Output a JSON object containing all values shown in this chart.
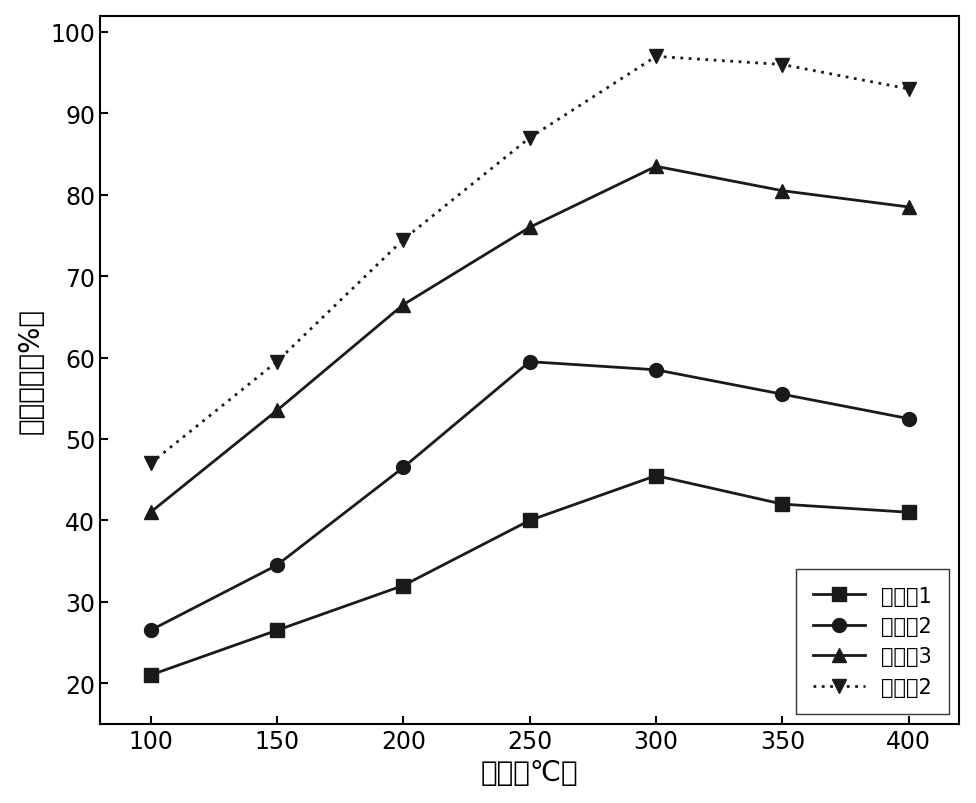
{
  "x": [
    100,
    150,
    200,
    250,
    300,
    350,
    400
  ],
  "series": [
    {
      "label": "对比入1",
      "y": [
        21,
        26.5,
        32,
        40,
        45.5,
        42,
        41
      ],
      "marker": "s",
      "linestyle": "-",
      "color": "#1a1a1a"
    },
    {
      "label": "对比入2",
      "y": [
        26.5,
        34.5,
        46.5,
        59.5,
        58.5,
        55.5,
        52.5
      ],
      "marker": "o",
      "linestyle": "-",
      "color": "#1a1a1a"
    },
    {
      "label": "对比入3",
      "y": [
        41,
        53.5,
        66.5,
        76,
        83.5,
        80.5,
        78.5
      ],
      "marker": "^",
      "linestyle": "-",
      "color": "#1a1a1a"
    },
    {
      "label": "实施入2",
      "y": [
        47,
        59.5,
        74.5,
        87,
        97,
        96,
        93
      ],
      "marker": "v",
      "linestyle": "dotted",
      "color": "#1a1a1a"
    }
  ],
  "xlabel": "温度（℃）",
  "ylabel": "脱牁效率（%）",
  "xlim": [
    80,
    420
  ],
  "ylim": [
    15,
    102
  ],
  "xticks": [
    100,
    150,
    200,
    250,
    300,
    350,
    400
  ],
  "yticks": [
    20,
    30,
    40,
    50,
    60,
    70,
    80,
    90,
    100
  ],
  "xlabel_fontsize": 20,
  "ylabel_fontsize": 20,
  "tick_fontsize": 17,
  "legend_fontsize": 15,
  "marker_size": 10,
  "linewidth": 2.0,
  "background_color": "#ffffff"
}
